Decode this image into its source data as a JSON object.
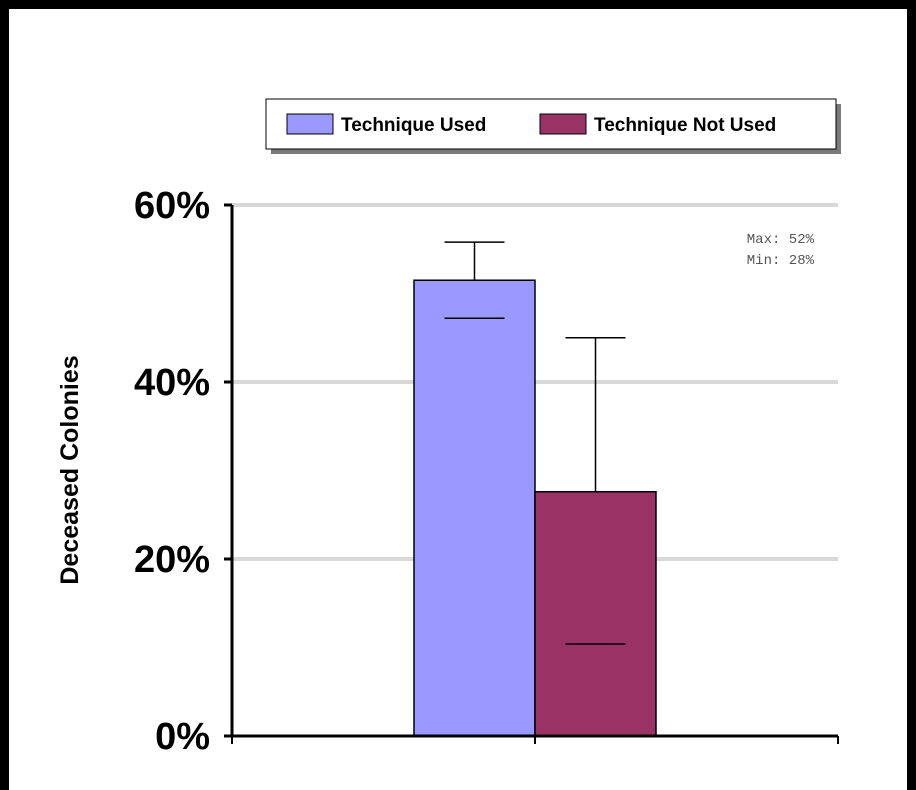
{
  "chart_data": {
    "type": "bar",
    "categories": [
      ""
    ],
    "series": [
      {
        "name": "Technique Used",
        "values": [
          51.5
        ],
        "error_low": [
          47.2
        ],
        "error_high": [
          55.8
        ],
        "color": "#9999ff"
      },
      {
        "name": "Technique Not Used",
        "values": [
          27.6
        ],
        "error_low": [
          10.4
        ],
        "error_high": [
          45.0
        ],
        "color": "#993366"
      }
    ],
    "ylabel": "Deceased Colonies",
    "xlabel": "",
    "ylim": [
      0,
      60
    ],
    "yticks": [
      "0%",
      "20%",
      "40%",
      "60%"
    ],
    "grid": true,
    "legend": "top",
    "annotations": [
      "Max: 52%",
      "Min: 28%"
    ]
  }
}
